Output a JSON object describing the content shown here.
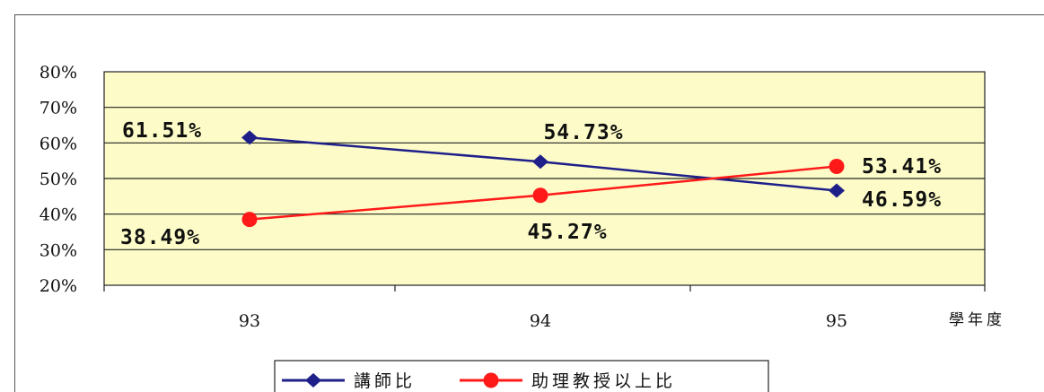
{
  "chart_data": {
    "type": "line",
    "categories": [
      "93",
      "94",
      "95"
    ],
    "xlabel": "學年度",
    "ylabel": "",
    "ylim": [
      20,
      80
    ],
    "yticks": [
      "80%",
      "70%",
      "60%",
      "50%",
      "40%",
      "30%",
      "20%"
    ],
    "grid": true,
    "legend": "bottom",
    "background_color": "#fdfcc8",
    "series": [
      {
        "name": "講師比",
        "values": [
          61.51,
          54.73,
          46.59
        ],
        "labels": [
          "61.51%",
          "54.73%",
          "46.59%"
        ],
        "color": "#1f1f8a",
        "marker": "diamond"
      },
      {
        "name": "助理教授以上比",
        "values": [
          38.49,
          45.27,
          53.41
        ],
        "labels": [
          "38.49%",
          "45.27%",
          "53.41%"
        ],
        "color": "#ff1a1a",
        "marker": "circle"
      }
    ]
  }
}
